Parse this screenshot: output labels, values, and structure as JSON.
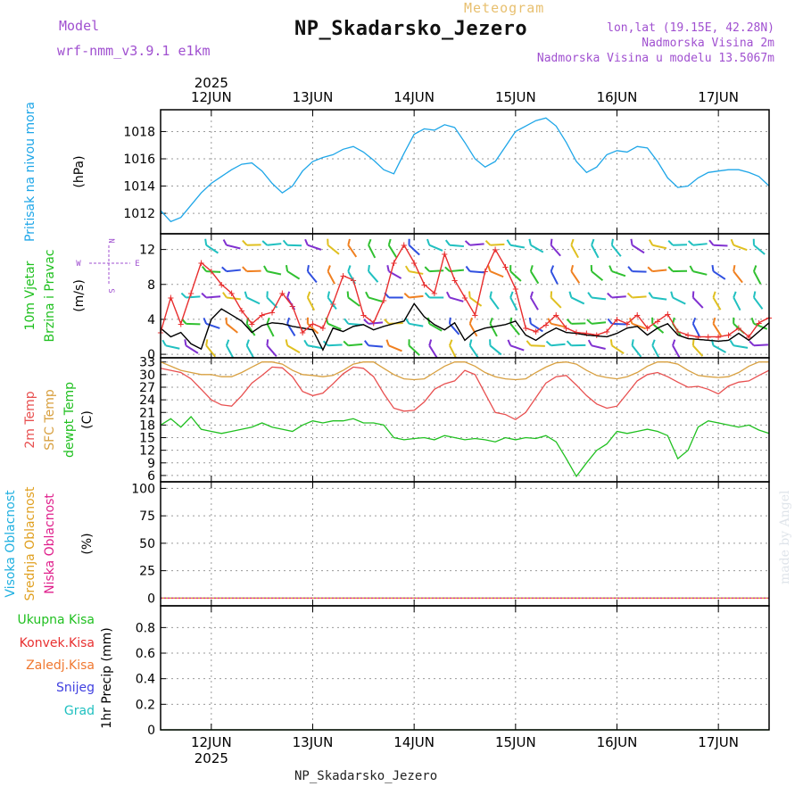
{
  "header": {
    "meteogram_label": "Meteogram",
    "station_title": "NP_Skadarsko_Jezero",
    "model_label": "Model",
    "model_name": "wrf-nmm_v3.9.1 e1km",
    "lonlat": "lon,lat (19.15E, 42.28N)",
    "elevation": "Nadmorska Visina 2m",
    "model_elevation": "Nadmorska Visina u modelu 13.5067m"
  },
  "footer": {
    "station": "NP_Skadarsko_Jezero"
  },
  "credit": "made by Angel",
  "time_axis": {
    "year": "2025",
    "days": [
      "12JUN",
      "13JUN",
      "14JUN",
      "15JUN",
      "16JUN",
      "17JUN"
    ]
  },
  "colors": {
    "pressure": "#1ea6e8",
    "wind_speed": "#000000",
    "wind_gust": "#e83030",
    "temp_2m": "#e85050",
    "sfc_temp": "#d8a040",
    "dewpoint": "#20c020",
    "high_cloud": "#20b0e0",
    "mid_cloud": "#e0a020",
    "low_cloud": "#e0208c",
    "total_precip": "#20c020",
    "convective_precip": "#e83030",
    "frozen_precip": "#f07830",
    "snow": "#4040e0",
    "hail": "#20c0c0"
  },
  "chart_data": [
    {
      "type": "line",
      "panel": "pressure",
      "ylabel": [
        "Pritisak na nivou mora",
        "(hPa)"
      ],
      "y_ticks": [
        1012,
        1014,
        1016,
        1018
      ],
      "ylim": [
        1010.5,
        1019.6
      ],
      "x_unit": "days since 12JUN 00:00",
      "x_range": [
        -0.5,
        5.5
      ],
      "grid": true,
      "series": [
        {
          "name": "Pritisak na nivou mora",
          "x": [
            -0.5,
            -0.4,
            -0.3,
            -0.2,
            -0.1,
            0.0,
            0.1,
            0.2,
            0.3,
            0.4,
            0.5,
            0.6,
            0.7,
            0.8,
            0.9,
            1.0,
            1.1,
            1.2,
            1.3,
            1.4,
            1.5,
            1.6,
            1.7,
            1.8,
            1.9,
            2.0,
            2.1,
            2.2,
            2.3,
            2.4,
            2.5,
            2.6,
            2.7,
            2.8,
            2.9,
            3.0,
            3.1,
            3.2,
            3.3,
            3.4,
            3.5,
            3.6,
            3.7,
            3.8,
            3.9,
            4.0,
            4.1,
            4.2,
            4.3,
            4.4,
            4.5,
            4.6,
            4.7,
            4.8,
            4.9,
            5.0,
            5.1,
            5.2,
            5.3,
            5.4,
            5.5
          ],
          "values": [
            1012.2,
            1011.4,
            1011.7,
            1012.6,
            1013.5,
            1014.2,
            1014.7,
            1015.2,
            1015.6,
            1015.7,
            1015.1,
            1014.2,
            1013.5,
            1014.0,
            1015.1,
            1015.8,
            1016.1,
            1016.3,
            1016.7,
            1016.9,
            1016.5,
            1015.9,
            1015.2,
            1014.9,
            1016.4,
            1017.8,
            1018.2,
            1018.1,
            1018.5,
            1018.3,
            1017.2,
            1016.0,
            1015.4,
            1015.8,
            1016.9,
            1018.0,
            1018.4,
            1018.8,
            1019.0,
            1018.4,
            1017.2,
            1015.8,
            1015.0,
            1015.4,
            1016.3,
            1016.6,
            1016.5,
            1016.9,
            1016.8,
            1015.8,
            1014.6,
            1013.9,
            1014.0,
            1014.6,
            1015.0,
            1015.1,
            1015.2,
            1015.2,
            1015.0,
            1014.7,
            1014.0
          ]
        }
      ]
    },
    {
      "type": "line",
      "panel": "wind",
      "ylabel": [
        "10m Vjetar",
        "Brzina i Pravac",
        "(m/s)"
      ],
      "compass": [
        "N",
        "W",
        "E",
        "S"
      ],
      "y_ticks": [
        0,
        4,
        8,
        12
      ],
      "ylim": [
        -0.4,
        13.8
      ],
      "x_range": [
        -0.5,
        5.5
      ],
      "grid": true,
      "series": [
        {
          "name": "10m Vjetar brzina",
          "x": [
            -0.5,
            -0.4,
            -0.3,
            -0.2,
            -0.1,
            0.0,
            0.1,
            0.2,
            0.3,
            0.4,
            0.5,
            0.6,
            0.7,
            0.8,
            0.9,
            1.0,
            1.1,
            1.2,
            1.3,
            1.4,
            1.5,
            1.6,
            1.7,
            1.8,
            1.9,
            2.0,
            2.1,
            2.2,
            2.3,
            2.4,
            2.5,
            2.6,
            2.7,
            2.8,
            2.9,
            3.0,
            3.1,
            3.2,
            3.3,
            3.4,
            3.5,
            3.6,
            3.7,
            3.8,
            3.9,
            4.0,
            4.1,
            4.2,
            4.3,
            4.4,
            4.5,
            4.6,
            4.7,
            4.8,
            4.9,
            5.0,
            5.1,
            5.2,
            5.3,
            5.4,
            5.5
          ],
          "values": [
            3.0,
            2.0,
            2.5,
            1.2,
            0.6,
            4.0,
            5.2,
            4.5,
            3.8,
            2.5,
            3.3,
            3.6,
            3.5,
            3.2,
            3.0,
            2.8,
            0.5,
            3.0,
            2.6,
            3.2,
            3.4,
            2.8,
            3.2,
            3.5,
            3.8,
            5.8,
            4.3,
            3.4,
            2.8,
            3.6,
            1.6,
            2.6,
            3.0,
            3.2,
            3.4,
            3.8,
            2.2,
            1.6,
            2.4,
            3.0,
            2.5,
            2.4,
            2.2,
            2.1,
            2.0,
            2.4,
            3.0,
            3.2,
            2.2,
            3.0,
            3.5,
            2.2,
            1.8,
            1.7,
            1.6,
            1.5,
            1.6,
            2.4,
            1.6,
            2.6,
            3.6
          ]
        },
        {
          "name": "10m Vjetar udar",
          "x": [
            -0.5,
            -0.4,
            -0.3,
            -0.2,
            -0.1,
            0.0,
            0.1,
            0.2,
            0.3,
            0.4,
            0.5,
            0.6,
            0.7,
            0.8,
            0.9,
            1.0,
            1.1,
            1.2,
            1.3,
            1.4,
            1.5,
            1.6,
            1.7,
            1.8,
            1.9,
            2.0,
            2.1,
            2.2,
            2.3,
            2.4,
            2.5,
            2.6,
            2.7,
            2.8,
            2.9,
            3.0,
            3.1,
            3.2,
            3.3,
            3.4,
            3.5,
            3.6,
            3.7,
            3.8,
            3.9,
            4.0,
            4.1,
            4.2,
            4.3,
            4.4,
            4.5,
            4.6,
            4.7,
            4.8,
            4.9,
            5.0,
            5.1,
            5.2,
            5.3,
            5.4,
            5.5
          ],
          "values": [
            2.5,
            6.5,
            3.5,
            7.0,
            10.5,
            9.5,
            8.0,
            7.0,
            5.0,
            3.5,
            4.5,
            4.8,
            7.0,
            5.5,
            2.5,
            3.5,
            3.0,
            5.8,
            9.0,
            8.5,
            4.5,
            3.6,
            6.2,
            10.5,
            12.5,
            10.5,
            8.0,
            7.0,
            11.5,
            8.5,
            6.5,
            4.5,
            9.5,
            12.0,
            10.0,
            7.5,
            3.0,
            2.6,
            3.4,
            4.5,
            3.0,
            2.5,
            2.4,
            2.2,
            2.6,
            4.0,
            3.5,
            4.5,
            3.0,
            3.8,
            4.6,
            2.6,
            2.2,
            2.0,
            2.0,
            2.0,
            2.2,
            3.0,
            2.0,
            3.6,
            4.2
          ]
        }
      ]
    },
    {
      "type": "line",
      "panel": "temperature",
      "ylabel": [
        "2m Temp",
        "SFC Temp",
        "dewpt Temp",
        "(C)"
      ],
      "y_ticks": [
        6,
        9,
        12,
        15,
        18,
        21,
        24,
        27,
        30,
        33
      ],
      "ylim": [
        4.5,
        34.0
      ],
      "x_range": [
        -0.5,
        5.5
      ],
      "grid": true,
      "series": [
        {
          "name": "2m Temp",
          "x": [
            -0.5,
            -0.4,
            -0.3,
            -0.2,
            -0.1,
            0.0,
            0.1,
            0.2,
            0.3,
            0.4,
            0.5,
            0.6,
            0.7,
            0.8,
            0.9,
            1.0,
            1.1,
            1.2,
            1.3,
            1.4,
            1.5,
            1.6,
            1.7,
            1.8,
            1.9,
            2.0,
            2.1,
            2.2,
            2.3,
            2.4,
            2.5,
            2.6,
            2.7,
            2.8,
            2.9,
            3.0,
            3.1,
            3.2,
            3.3,
            3.4,
            3.5,
            3.6,
            3.7,
            3.8,
            3.9,
            4.0,
            4.1,
            4.2,
            4.3,
            4.4,
            4.5,
            4.6,
            4.7,
            4.8,
            4.9,
            5.0,
            5.1,
            5.2,
            5.3,
            5.4,
            5.5
          ],
          "values": [
            31.5,
            31.0,
            30.5,
            29.0,
            26.5,
            24.0,
            22.8,
            22.5,
            25.0,
            28.0,
            29.8,
            31.8,
            31.6,
            29.5,
            26.0,
            25.0,
            25.6,
            27.8,
            30.2,
            31.8,
            31.5,
            29.5,
            25.5,
            22.0,
            21.3,
            21.5,
            23.5,
            26.5,
            27.8,
            28.5,
            31.0,
            30.0,
            25.5,
            21.0,
            20.5,
            19.3,
            21.0,
            24.5,
            28.0,
            29.5,
            29.8,
            27.5,
            25.0,
            23.0,
            22.0,
            22.5,
            25.5,
            28.5,
            30.0,
            30.5,
            29.5,
            28.2,
            27.0,
            27.2,
            26.5,
            25.4,
            27.3,
            28.2,
            28.5,
            29.8,
            31.0
          ]
        },
        {
          "name": "SFC Temp",
          "x": [
            -0.5,
            -0.4,
            -0.3,
            -0.2,
            -0.1,
            0.0,
            0.1,
            0.2,
            0.3,
            0.4,
            0.5,
            0.6,
            0.7,
            0.8,
            0.9,
            1.0,
            1.1,
            1.2,
            1.3,
            1.4,
            1.5,
            1.6,
            1.7,
            1.8,
            1.9,
            2.0,
            2.1,
            2.2,
            2.3,
            2.4,
            2.5,
            2.6,
            2.7,
            2.8,
            2.9,
            3.0,
            3.1,
            3.2,
            3.3,
            3.4,
            3.5,
            3.6,
            3.7,
            3.8,
            3.9,
            4.0,
            4.1,
            4.2,
            4.3,
            4.4,
            4.5,
            4.6,
            4.7,
            4.8,
            4.9,
            5.0,
            5.1,
            5.2,
            5.3,
            5.4,
            5.5
          ],
          "values": [
            33.0,
            32.0,
            31.0,
            30.5,
            30.0,
            30.0,
            29.5,
            29.5,
            30.5,
            31.8,
            33.0,
            33.0,
            32.5,
            31.0,
            30.0,
            29.8,
            29.5,
            29.8,
            31.0,
            32.5,
            33.0,
            33.0,
            31.5,
            30.0,
            29.0,
            28.8,
            29.0,
            30.5,
            32.0,
            33.0,
            33.0,
            32.0,
            30.5,
            29.5,
            29.0,
            28.8,
            29.0,
            30.5,
            31.8,
            32.8,
            33.0,
            32.5,
            31.0,
            29.8,
            29.3,
            29.0,
            29.5,
            30.5,
            32.0,
            33.0,
            33.0,
            32.5,
            31.0,
            29.8,
            29.5,
            29.3,
            29.5,
            30.5,
            32.0,
            33.0,
            33.0
          ]
        },
        {
          "name": "dewpt Temp",
          "x": [
            -0.5,
            -0.4,
            -0.3,
            -0.2,
            -0.1,
            0.0,
            0.1,
            0.2,
            0.3,
            0.4,
            0.5,
            0.6,
            0.7,
            0.8,
            0.9,
            1.0,
            1.1,
            1.2,
            1.3,
            1.4,
            1.5,
            1.6,
            1.7,
            1.8,
            1.9,
            2.0,
            2.1,
            2.2,
            2.3,
            2.4,
            2.5,
            2.6,
            2.7,
            2.8,
            2.9,
            3.0,
            3.1,
            3.2,
            3.3,
            3.4,
            3.5,
            3.6,
            3.7,
            3.8,
            3.9,
            4.0,
            4.1,
            4.2,
            4.3,
            4.4,
            4.5,
            4.6,
            4.7,
            4.8,
            4.9,
            5.0,
            5.1,
            5.2,
            5.3,
            5.4,
            5.5
          ],
          "values": [
            18.0,
            19.5,
            17.5,
            20.0,
            17.0,
            16.5,
            16.0,
            16.5,
            17.0,
            17.5,
            18.5,
            17.5,
            17.0,
            16.5,
            18.0,
            19.0,
            18.5,
            19.0,
            19.0,
            19.5,
            18.5,
            18.5,
            18.0,
            15.0,
            14.5,
            14.8,
            15.0,
            14.5,
            15.5,
            15.0,
            14.5,
            14.8,
            14.5,
            14.0,
            15.0,
            14.5,
            15.0,
            14.8,
            15.5,
            14.0,
            10.0,
            5.8,
            9.0,
            12.0,
            13.5,
            16.5,
            16.0,
            16.5,
            17.0,
            16.5,
            15.5,
            10.0,
            12.0,
            17.5,
            19.0,
            18.5,
            18.0,
            17.5,
            18.0,
            16.8,
            16.0
          ]
        }
      ]
    },
    {
      "type": "line",
      "panel": "clouds",
      "ylabel": [
        "Visoka Oblacnost",
        "Srednja Oblacnost",
        "Niska Oblacnost",
        "(%)"
      ],
      "y_ticks": [
        0,
        25,
        50,
        75,
        100
      ],
      "ylim": [
        -7,
        106
      ],
      "x_range": [
        -0.5,
        5.5
      ],
      "grid": true,
      "series": [
        {
          "name": "Visoka Oblacnost",
          "x": [
            -0.5,
            5.5
          ],
          "values": [
            0,
            0
          ]
        },
        {
          "name": "Srednja Oblacnost",
          "x": [
            -0.5,
            5.5
          ],
          "values": [
            0,
            0
          ]
        },
        {
          "name": "Niska Oblacnost",
          "x": [
            -0.5,
            5.5
          ],
          "values": [
            0,
            0
          ]
        }
      ]
    },
    {
      "type": "line",
      "panel": "precip",
      "ylabel": [
        "1hr Precip (mm)"
      ],
      "legend": [
        "Ukupna Kisa",
        "Konvek.Kisa",
        "Zaledj.Kisa",
        "Snijeg",
        "Grad"
      ],
      "y_ticks": [
        0,
        0.2,
        0.4,
        0.6,
        0.8
      ],
      "y_tick_labels": [
        "0",
        "0.2",
        "0.4",
        "0.6",
        "0.8"
      ],
      "ylim": [
        0,
        0.97
      ],
      "x_range": [
        -0.5,
        5.5
      ],
      "grid": true,
      "series": [
        {
          "name": "Ukupna Kisa",
          "x": [
            -0.5,
            5.5
          ],
          "values": [
            0,
            0
          ]
        }
      ]
    }
  ]
}
